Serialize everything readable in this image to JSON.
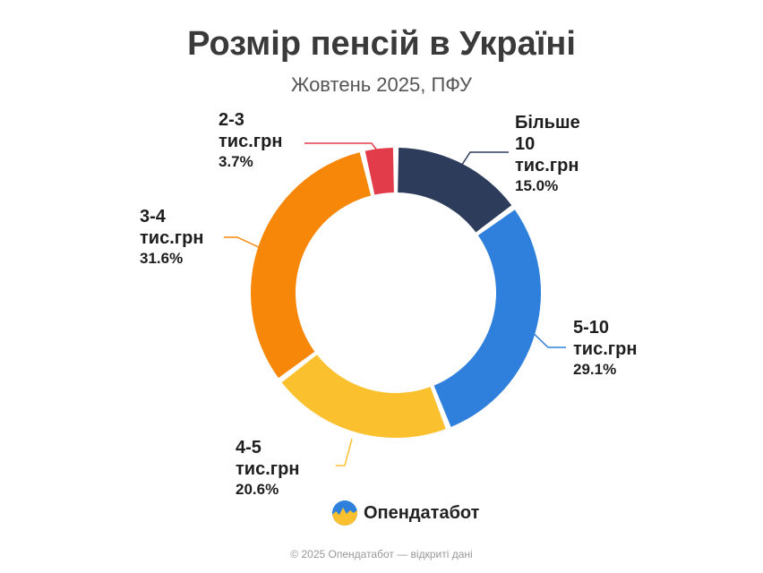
{
  "header": {
    "title": "Розмір пенсій в Україні",
    "subtitle": "Жовтень 2025, ПФУ"
  },
  "chart_data": {
    "type": "pie",
    "style": "donut",
    "start": "top",
    "direction": "clockwise",
    "slices": [
      {
        "label_lines": [
          "Більше",
          "10",
          "тис.грн"
        ],
        "value": 15.0,
        "pct_text": "15.0%",
        "color": "#2d3c5a"
      },
      {
        "label_lines": [
          "5-10",
          "тис.грн"
        ],
        "value": 29.1,
        "pct_text": "29.1%",
        "color": "#2f80dc"
      },
      {
        "label_lines": [
          "4-5",
          "тис.грн"
        ],
        "value": 20.6,
        "pct_text": "20.6%",
        "color": "#fbc02d"
      },
      {
        "label_lines": [
          "3-4",
          "тис.грн"
        ],
        "value": 31.6,
        "pct_text": "31.6%",
        "color": "#f78708"
      },
      {
        "label_lines": [
          "2-3",
          "тис.грн"
        ],
        "value": 3.7,
        "pct_text": "3.7%",
        "color": "#e23c4a"
      }
    ]
  },
  "brand": {
    "name": "Опендатабот",
    "logo_icon": "opendatabot-logo-icon",
    "logo_colors": [
      "#2f80dc",
      "#fbc02d"
    ]
  },
  "footer": {
    "text": "© 2025 Опендатабот — відкриті дані"
  }
}
